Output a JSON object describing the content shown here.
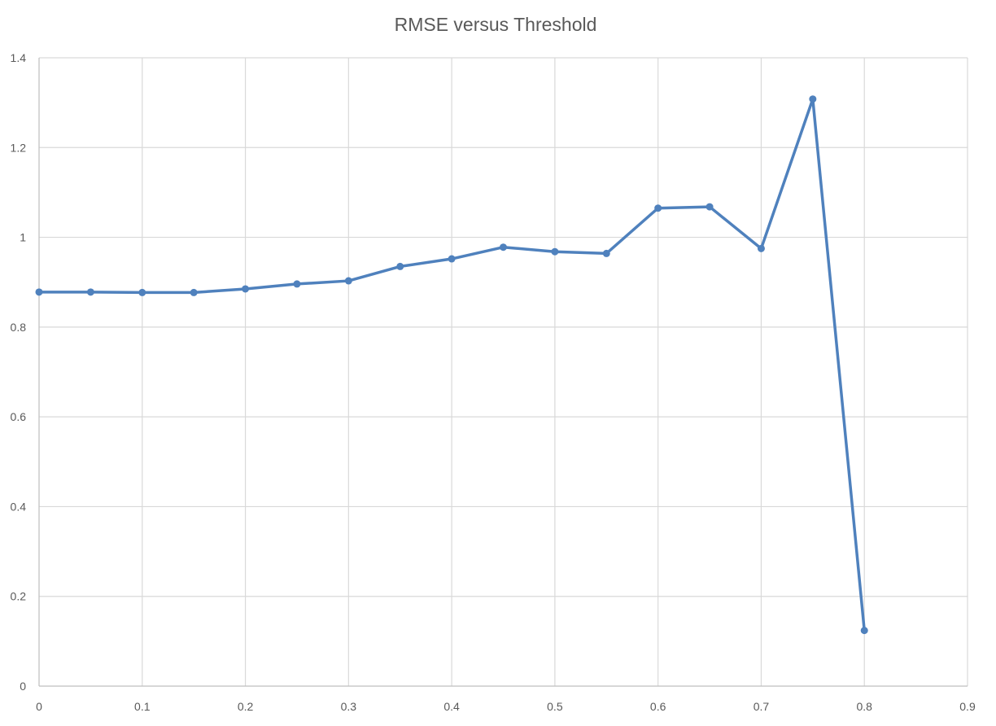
{
  "chart_data": {
    "type": "line",
    "title": "RMSE versus Threshold",
    "xlabel": "",
    "ylabel": "",
    "xlim": [
      0,
      0.9
    ],
    "ylim": [
      0,
      1.4
    ],
    "x_ticks": [
      0,
      0.1,
      0.2,
      0.3,
      0.4,
      0.5,
      0.6,
      0.7,
      0.8,
      0.9
    ],
    "x_tick_labels": [
      "0",
      "0.1",
      "0.2",
      "0.3",
      "0.4",
      "0.5",
      "0.6",
      "0.7",
      "0.8",
      "0.9"
    ],
    "y_ticks": [
      0,
      0.2,
      0.4,
      0.6,
      0.8,
      1.0,
      1.2,
      1.4
    ],
    "y_tick_labels": [
      "0",
      "0.2",
      "0.4",
      "0.6",
      "0.8",
      "1",
      "1.2",
      "1.4"
    ],
    "grid": true,
    "legend": "none",
    "series": [
      {
        "name": "RMSE",
        "color": "#4f81bd",
        "points": [
          {
            "x": 0.0,
            "y": 0.878
          },
          {
            "x": 0.05,
            "y": 0.878
          },
          {
            "x": 0.1,
            "y": 0.877
          },
          {
            "x": 0.15,
            "y": 0.877
          },
          {
            "x": 0.2,
            "y": 0.885
          },
          {
            "x": 0.25,
            "y": 0.896
          },
          {
            "x": 0.3,
            "y": 0.903
          },
          {
            "x": 0.35,
            "y": 0.935
          },
          {
            "x": 0.4,
            "y": 0.952
          },
          {
            "x": 0.45,
            "y": 0.978
          },
          {
            "x": 0.5,
            "y": 0.968
          },
          {
            "x": 0.55,
            "y": 0.964
          },
          {
            "x": 0.6,
            "y": 1.065
          },
          {
            "x": 0.65,
            "y": 1.068
          },
          {
            "x": 0.7,
            "y": 0.975
          },
          {
            "x": 0.75,
            "y": 1.308
          },
          {
            "x": 0.8,
            "y": 0.124
          }
        ]
      }
    ]
  }
}
